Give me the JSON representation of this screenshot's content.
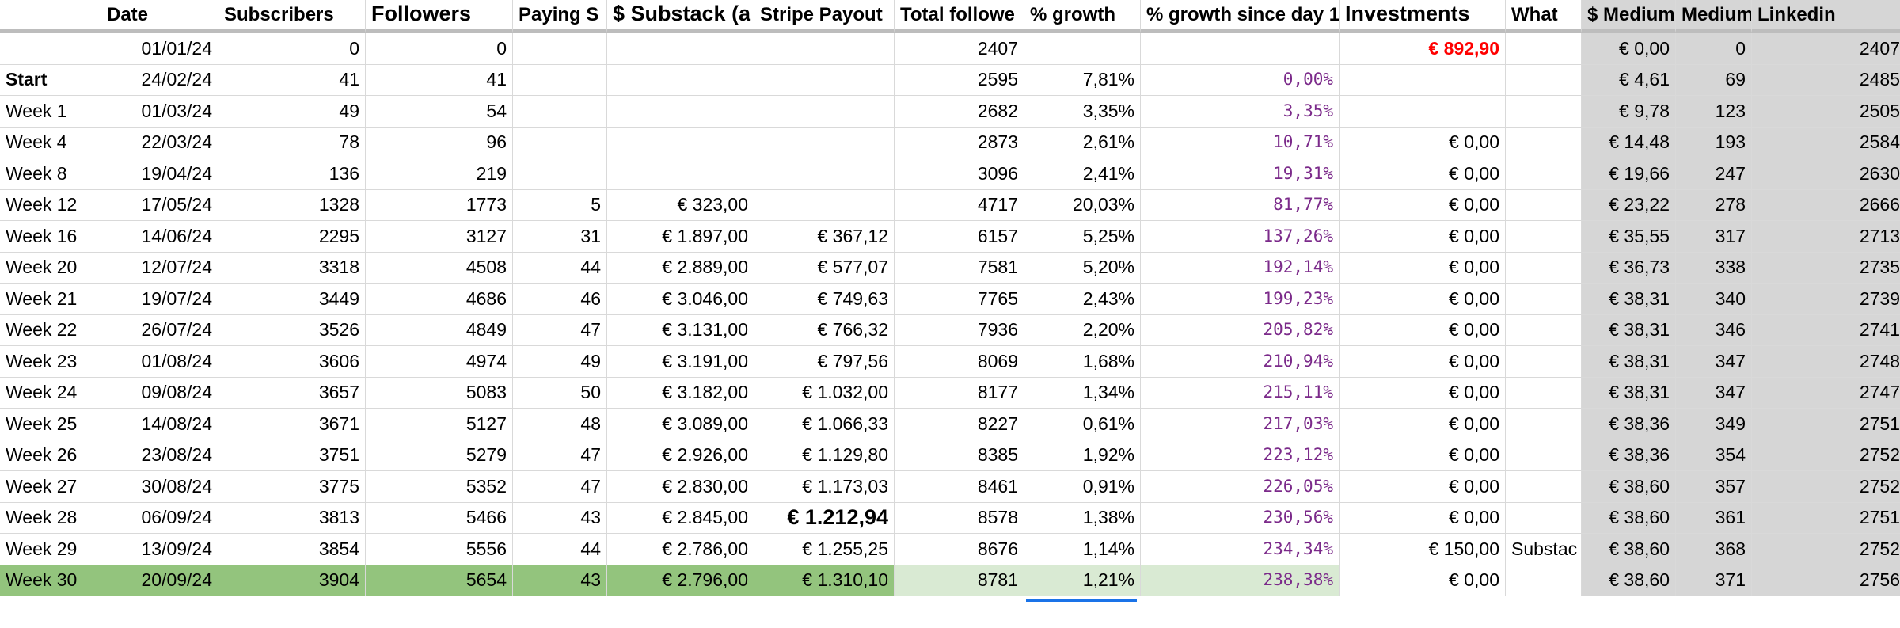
{
  "headers": [
    "",
    "Date",
    "Subscribers",
    "Followers",
    "Paying S",
    "$ Substack (a",
    "Stripe Payout",
    "Total followe",
    "% growth",
    "% growth since day 1",
    "Investments",
    "What",
    "$ Medium",
    "Medium",
    "Linkedin"
  ],
  "rows": [
    [
      "",
      "01/01/24",
      "0",
      "0",
      "",
      "",
      "",
      "2407",
      "",
      "",
      "€ 892,90",
      "",
      "€ 0,00",
      "0",
      "2407"
    ],
    [
      "Start",
      "24/02/24",
      "41",
      "41",
      "",
      "",
      "",
      "2595",
      "7,81%",
      "0,00%",
      "",
      "",
      "€ 4,61",
      "69",
      "2485"
    ],
    [
      "Week 1",
      "01/03/24",
      "49",
      "54",
      "",
      "",
      "",
      "2682",
      "3,35%",
      "3,35%",
      "",
      "",
      "€ 9,78",
      "123",
      "2505"
    ],
    [
      "Week 4",
      "22/03/24",
      "78",
      "96",
      "",
      "",
      "",
      "2873",
      "2,61%",
      "10,71%",
      "€ 0,00",
      "",
      "€ 14,48",
      "193",
      "2584"
    ],
    [
      "Week 8",
      "19/04/24",
      "136",
      "219",
      "",
      "",
      "",
      "3096",
      "2,41%",
      "19,31%",
      "€ 0,00",
      "",
      "€ 19,66",
      "247",
      "2630"
    ],
    [
      "Week 12",
      "17/05/24",
      "1328",
      "1773",
      "5",
      "€ 323,00",
      "",
      "4717",
      "20,03%",
      "81,77%",
      "€ 0,00",
      "",
      "€ 23,22",
      "278",
      "2666"
    ],
    [
      "Week 16",
      "14/06/24",
      "2295",
      "3127",
      "31",
      "€ 1.897,00",
      "€ 367,12",
      "6157",
      "5,25%",
      "137,26%",
      "€ 0,00",
      "",
      "€ 35,55",
      "317",
      "2713"
    ],
    [
      "Week 20",
      "12/07/24",
      "3318",
      "4508",
      "44",
      "€ 2.889,00",
      "€ 577,07",
      "7581",
      "5,20%",
      "192,14%",
      "€ 0,00",
      "",
      "€ 36,73",
      "338",
      "2735"
    ],
    [
      "Week 21",
      "19/07/24",
      "3449",
      "4686",
      "46",
      "€ 3.046,00",
      "€ 749,63",
      "7765",
      "2,43%",
      "199,23%",
      "€ 0,00",
      "",
      "€ 38,31",
      "340",
      "2739"
    ],
    [
      "Week 22",
      "26/07/24",
      "3526",
      "4849",
      "47",
      "€ 3.131,00",
      "€ 766,32",
      "7936",
      "2,20%",
      "205,82%",
      "€ 0,00",
      "",
      "€ 38,31",
      "346",
      "2741"
    ],
    [
      "Week 23",
      "01/08/24",
      "3606",
      "4974",
      "49",
      "€ 3.191,00",
      "€ 797,56",
      "8069",
      "1,68%",
      "210,94%",
      "€ 0,00",
      "",
      "€ 38,31",
      "347",
      "2748"
    ],
    [
      "Week 24",
      "09/08/24",
      "3657",
      "5083",
      "50",
      "€ 3.182,00",
      "€ 1.032,00",
      "8177",
      "1,34%",
      "215,11%",
      "€ 0,00",
      "",
      "€ 38,31",
      "347",
      "2747"
    ],
    [
      "Week 25",
      "14/08/24",
      "3671",
      "5127",
      "48",
      "€ 3.089,00",
      "€ 1.066,33",
      "8227",
      "0,61%",
      "217,03%",
      "€ 0,00",
      "",
      "€ 38,36",
      "349",
      "2751"
    ],
    [
      "Week 26",
      "23/08/24",
      "3751",
      "5279",
      "47",
      "€ 2.926,00",
      "€ 1.129,80",
      "8385",
      "1,92%",
      "223,12%",
      "€ 0,00",
      "",
      "€ 38,36",
      "354",
      "2752"
    ],
    [
      "Week 27",
      "30/08/24",
      "3775",
      "5352",
      "47",
      "€ 2.830,00",
      "€ 1.173,03",
      "8461",
      "0,91%",
      "226,05%",
      "€ 0,00",
      "",
      "€ 38,60",
      "357",
      "2752"
    ],
    [
      "Week 28",
      "06/09/24",
      "3813",
      "5466",
      "43",
      "€ 2.845,00",
      "€ 1.212,94",
      "8578",
      "1,38%",
      "230,56%",
      "€ 0,00",
      "",
      "€ 38,60",
      "361",
      "2751"
    ],
    [
      "Week 29",
      "13/09/24",
      "3854",
      "5556",
      "44",
      "€ 2.786,00",
      "€ 1.255,25",
      "8676",
      "1,14%",
      "234,34%",
      "€ 150,00",
      "Substac",
      "€ 38,60",
      "368",
      "2752"
    ],
    [
      "Week 30",
      "20/09/24",
      "3904",
      "5654",
      "43",
      "€ 2.796,00",
      "€ 1.310,10",
      "8781",
      "1,21%",
      "238,38%",
      "€ 0,00",
      "",
      "€ 38,60",
      "371",
      "2756"
    ]
  ],
  "colors": {
    "highlight_row": "#93c47d",
    "light_green": "#d9ead3",
    "gray_columns": "#d6d6d6",
    "growth_text": "#7b2a8a",
    "investment_red": "#ff0000",
    "selection": "#1a73e8"
  }
}
